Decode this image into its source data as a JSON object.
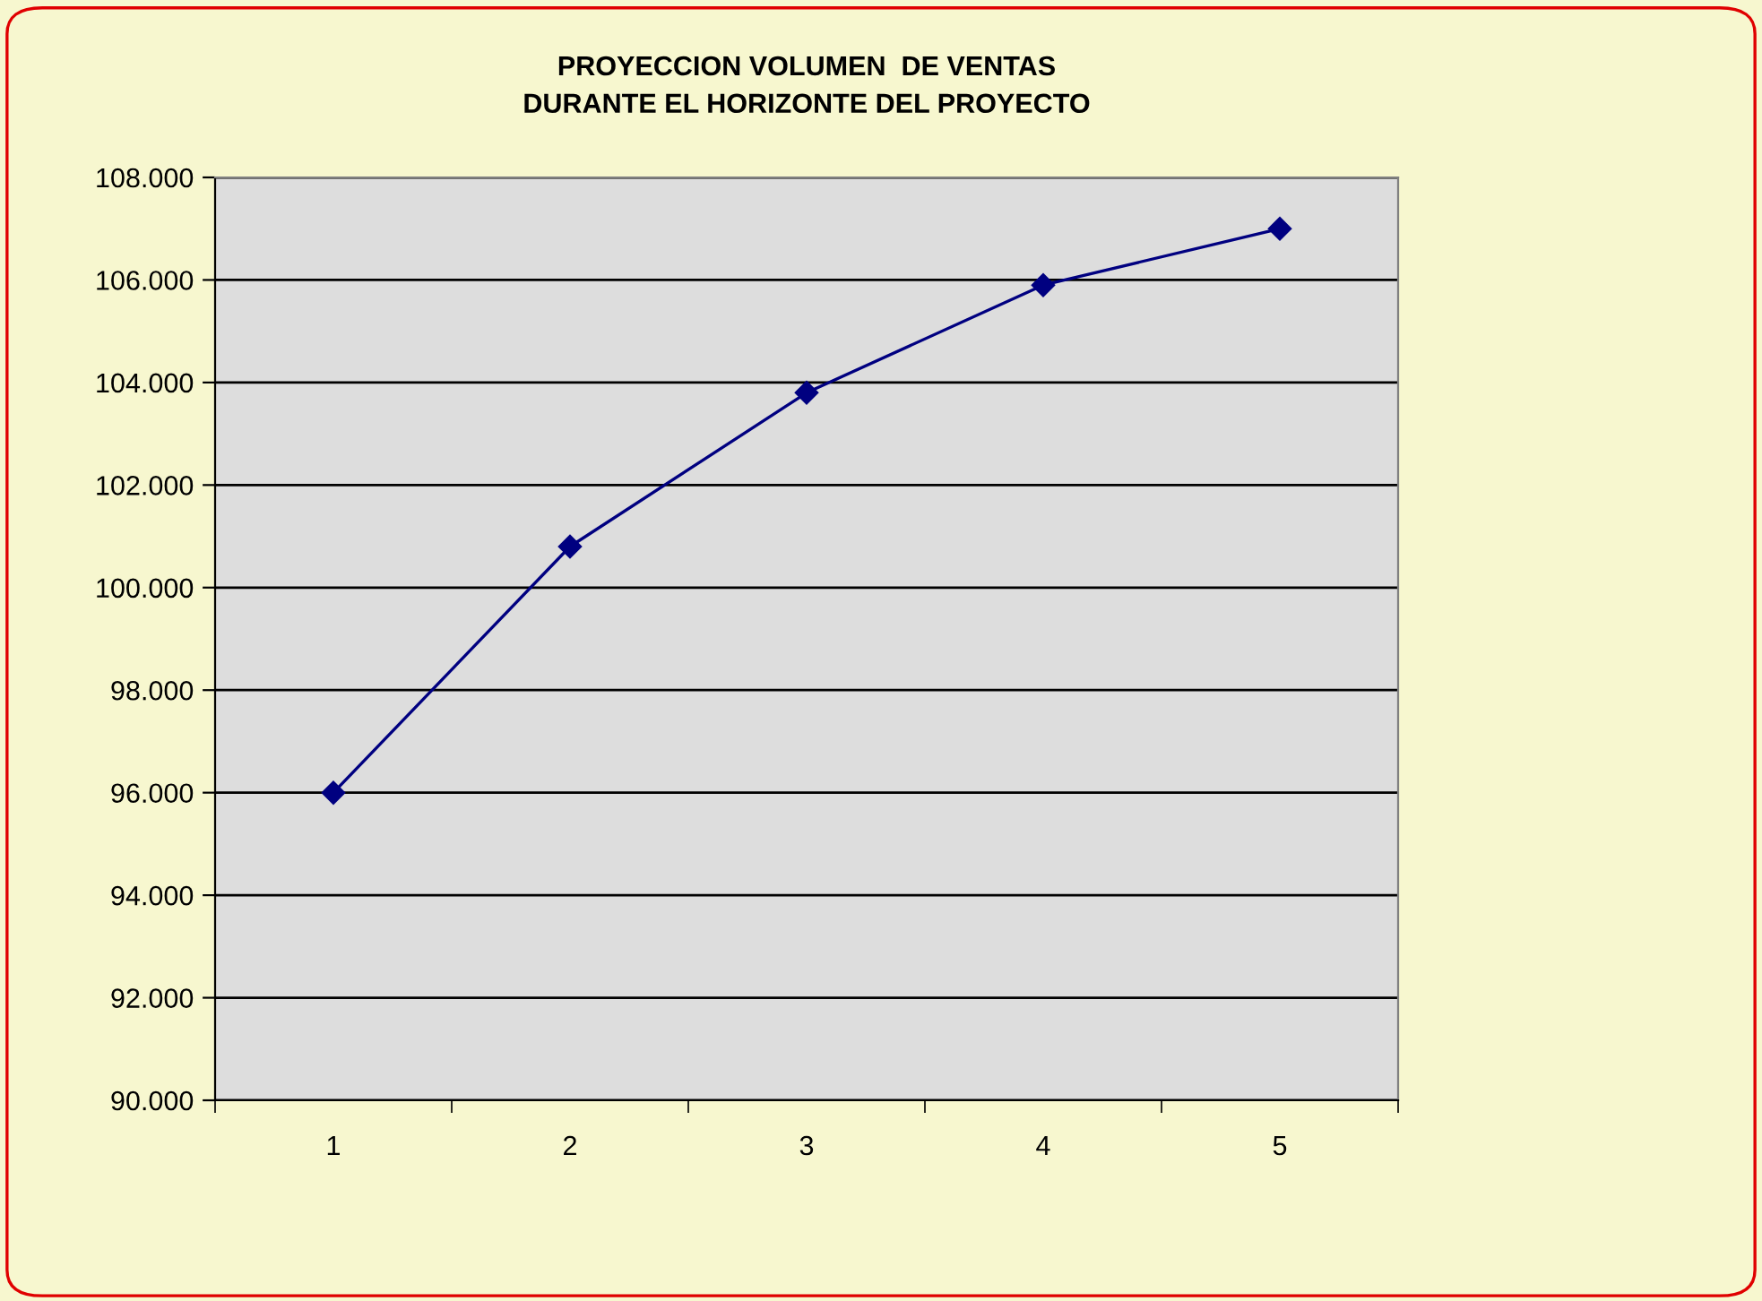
{
  "chart_data": {
    "type": "line",
    "title": "PROYECCION VOLUMEN  DE VENTAS\nDURANTE EL HORIZONTE DEL PROYECTO",
    "categories": [
      "1",
      "2",
      "3",
      "4",
      "5"
    ],
    "series": [
      {
        "color": "#000080",
        "values": [
          96000,
          100800,
          103800,
          105900,
          107000
        ]
      }
    ],
    "ylim": [
      90000,
      108000
    ],
    "yticks": [
      {
        "value": 90000,
        "label": "90.000"
      },
      {
        "value": 92000,
        "label": "92.000"
      },
      {
        "value": 94000,
        "label": "94.000"
      },
      {
        "value": 96000,
        "label": "96.000"
      },
      {
        "value": 98000,
        "label": "98.000"
      },
      {
        "value": 100000,
        "label": "100.000"
      },
      {
        "value": 102000,
        "label": "102.000"
      },
      {
        "value": 104000,
        "label": "104.000"
      },
      {
        "value": 106000,
        "label": "106.000"
      },
      {
        "value": 108000,
        "label": "108.000"
      }
    ],
    "grid": "y",
    "marker": "diamond",
    "line_style": "solid"
  }
}
